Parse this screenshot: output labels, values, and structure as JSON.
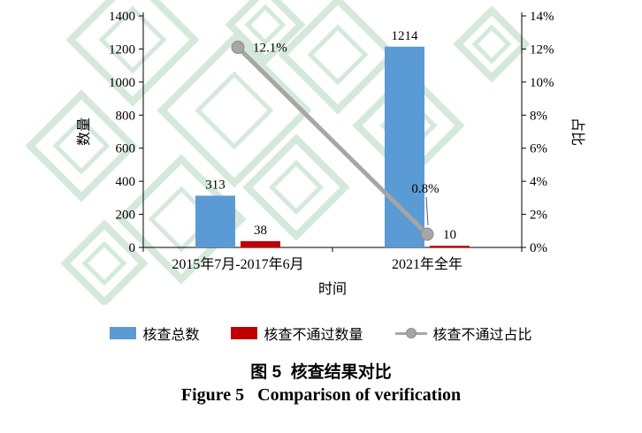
{
  "caption": {
    "zh": "图 5  核查结果对比",
    "en": "Figure 5   Comparison of verification"
  },
  "chart_data": {
    "type": "bar",
    "combo": "grouped bars on left axis + line with markers on right axis",
    "categories": [
      "2015年7月-2017年6月",
      "2021年全年"
    ],
    "series": [
      {
        "name": "核查总数",
        "type": "bar",
        "axis": "left",
        "color": "#5B9BD5",
        "values": [
          313,
          1214
        ],
        "data_labels": [
          "313",
          "1214"
        ]
      },
      {
        "name": "核查不通过数量",
        "type": "bar",
        "axis": "left",
        "color": "#C00000",
        "values": [
          38,
          10
        ],
        "data_labels": [
          "38",
          "10"
        ]
      },
      {
        "name": "核查不通过占比",
        "type": "line",
        "axis": "right",
        "color": "#A6A6A6",
        "values": [
          12.1,
          0.8
        ],
        "data_labels": [
          "12.1%",
          "0.8%"
        ]
      }
    ],
    "x_axis": {
      "title": "时间"
    },
    "left_axis": {
      "title": "数量",
      "min": 0,
      "max": 1400,
      "step": 200,
      "tick_labels": [
        "0",
        "200",
        "400",
        "600",
        "800",
        "1000",
        "1200",
        "1400"
      ]
    },
    "right_axis": {
      "title": "占比",
      "min": 0,
      "max": 14,
      "step": 2,
      "tick_labels": [
        "0%",
        "2%",
        "4%",
        "6%",
        "8%",
        "10%",
        "12%",
        "14%"
      ]
    },
    "legend_position": "bottom",
    "grid": false,
    "watermark_color": "#d5e9db"
  }
}
